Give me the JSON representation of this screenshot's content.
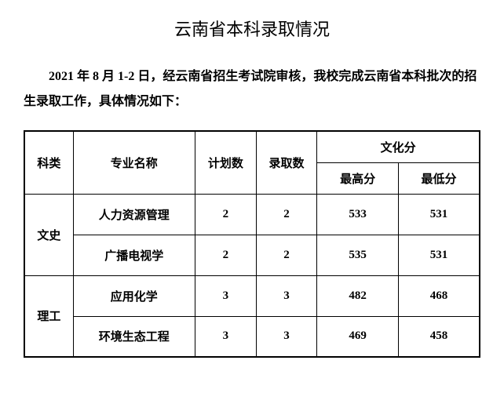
{
  "title": "云南省本科录取情况",
  "description": "2021 年 8 月 1-2 日，经云南省招生考试院审核，我校完成云南省本科批次的招生录取工作，具体情况如下：",
  "table": {
    "headers": {
      "category": "科类",
      "major": "专业名称",
      "plan": "计划数",
      "admit": "录取数",
      "culture_score": "文化分",
      "max_score": "最高分",
      "min_score": "最低分"
    },
    "categories": [
      {
        "name": "文史",
        "rows": [
          {
            "major": "人力资源管理",
            "plan": "2",
            "admit": "2",
            "max": "533",
            "min": "531"
          },
          {
            "major": "广播电视学",
            "plan": "2",
            "admit": "2",
            "max": "535",
            "min": "531"
          }
        ]
      },
      {
        "name": "理工",
        "rows": [
          {
            "major": "应用化学",
            "plan": "3",
            "admit": "3",
            "max": "482",
            "min": "468"
          },
          {
            "major": "环境生态工程",
            "plan": "3",
            "admit": "3",
            "max": "469",
            "min": "458"
          }
        ]
      }
    ]
  },
  "styling": {
    "title_fontsize": 22,
    "body_fontsize": 16,
    "table_fontsize": 15,
    "text_color": "#000000",
    "background_color": "#ffffff",
    "border_color": "#000000",
    "font_family": "SimSun"
  }
}
